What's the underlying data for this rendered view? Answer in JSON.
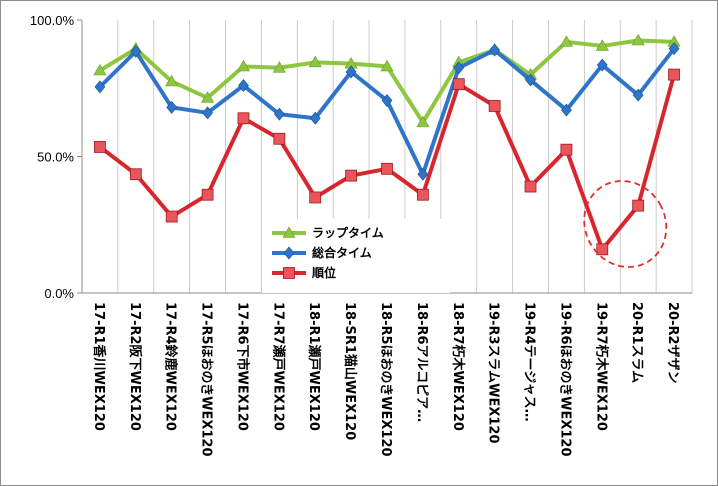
{
  "chart_data": {
    "type": "line",
    "categories": [
      "17-R1香川WEX120",
      "17-R2阪下WEX120",
      "17-R4鈴鹿WEX120",
      "17-R5ほおのきWEX120",
      "17-R6下市WEX120",
      "17-R7瀬戸WEX120",
      "18-R1瀬戸WEX120",
      "18-SR1猫山WEX120",
      "18-R5ほおのきWEX120",
      "18-R6アルコピア…",
      "18-R7朽木WEX120",
      "19-R3スラムWEX120",
      "19-R4テージャス…",
      "19-R6ほおのきWEX120",
      "19-R7朽木WEX120",
      "20-R1スラム",
      "20-R2ザザン"
    ],
    "series": [
      {
        "name": "ラップタイム",
        "color": "#8dc63f",
        "marker": "triangle",
        "values": [
          81.5,
          89.5,
          77.5,
          71.5,
          83.0,
          82.5,
          84.5,
          84.0,
          83.0,
          62.5,
          84.5,
          89.0,
          80.0,
          92.0,
          90.5,
          92.5,
          92.0
        ]
      },
      {
        "name": "総合タイム",
        "color": "#2e75c9",
        "marker": "diamond",
        "values": [
          75.5,
          88.5,
          68.0,
          66.0,
          76.0,
          65.5,
          64.0,
          81.0,
          70.5,
          43.5,
          82.5,
          89.0,
          78.0,
          67.0,
          83.5,
          72.5,
          89.5
        ]
      },
      {
        "name": "順位",
        "color": "#d9262e",
        "marker": "square",
        "values": [
          53.5,
          43.5,
          28.0,
          36.0,
          64.0,
          56.5,
          35.0,
          43.0,
          45.5,
          36.0,
          76.5,
          68.5,
          39.0,
          52.5,
          16.0,
          32.0,
          80.0
        ]
      }
    ],
    "y_ticks": [
      "100.0%",
      "50.0%",
      "0.0%"
    ],
    "ylim": [
      0,
      100
    ],
    "grid": "vertical",
    "legend_placement": "center",
    "annotation": "dashed red circle around 19-R7朽木WEX120 and 20-R1スラム"
  }
}
